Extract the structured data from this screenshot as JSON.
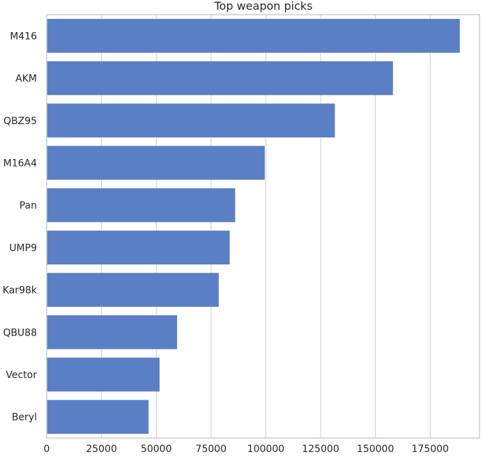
{
  "chart_data": {
    "type": "bar",
    "orientation": "horizontal",
    "title": "Top weapon picks",
    "xlabel": "",
    "ylabel": "",
    "categories": [
      "M416",
      "AKM",
      "QBZ95",
      "M16A4",
      "Pan",
      "UMP9",
      "Kar98k",
      "QBU88",
      "Vector",
      "Beryl"
    ],
    "values": [
      188500,
      158000,
      131500,
      99500,
      86000,
      83500,
      78500,
      59500,
      51500,
      46500
    ],
    "x_ticks": [
      0,
      25000,
      50000,
      75000,
      100000,
      125000,
      150000,
      175000
    ],
    "xlim": [
      0,
      197500
    ],
    "grid": true,
    "bar_color": "#5b7fc5"
  }
}
